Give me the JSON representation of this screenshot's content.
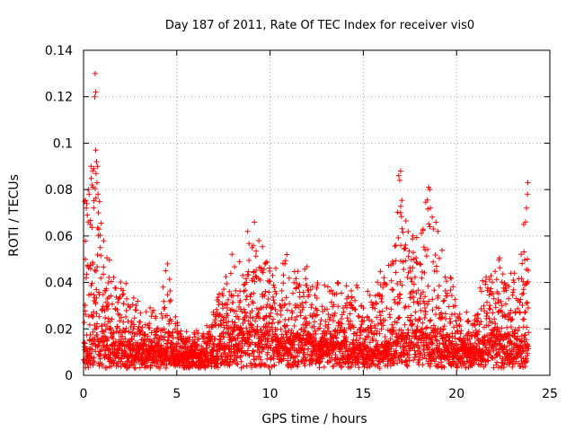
{
  "chart_data": {
    "type": "scatter",
    "title": "Day 187 of 2011, Rate Of TEC Index for receiver vis0",
    "xlabel": "GPS time / hours",
    "ylabel": "ROTI / TECUs",
    "xlim": [
      0,
      25
    ],
    "ylim": [
      0,
      0.14
    ],
    "x_ticks": [
      "0",
      "5",
      "10",
      "15",
      "20",
      "25"
    ],
    "y_ticks": [
      "0",
      "0.02",
      "0.04",
      "0.06",
      "0.08",
      "0.1",
      "0.12",
      "0.14"
    ],
    "grid": true,
    "marker": "+",
    "color": "#ff0000",
    "envelope": {
      "hours": [
        0,
        0.25,
        0.5,
        0.75,
        1,
        1.5,
        2,
        2.5,
        3,
        3.5,
        4,
        4.5,
        5,
        5.5,
        6,
        6.5,
        7,
        7.5,
        8,
        8.5,
        9,
        9.5,
        10,
        10.5,
        11,
        11.5,
        12,
        12.5,
        13,
        13.5,
        14,
        14.5,
        15,
        15.5,
        16,
        16.5,
        17,
        17.5,
        18,
        18.5,
        19,
        19.5,
        20,
        20.5,
        21,
        21.5,
        22,
        22.5,
        23,
        23.5,
        24
      ],
      "upper": [
        0.075,
        0.08,
        0.093,
        0.097,
        0.06,
        0.045,
        0.04,
        0.035,
        0.03,
        0.028,
        0.025,
        0.047,
        0.025,
        0.02,
        0.018,
        0.02,
        0.028,
        0.045,
        0.052,
        0.05,
        0.062,
        0.055,
        0.048,
        0.042,
        0.055,
        0.045,
        0.05,
        0.04,
        0.035,
        0.042,
        0.035,
        0.038,
        0.035,
        0.035,
        0.045,
        0.05,
        0.088,
        0.06,
        0.065,
        0.081,
        0.065,
        0.045,
        0.035,
        0.025,
        0.025,
        0.045,
        0.046,
        0.05,
        0.042,
        0.05,
        0.083
      ],
      "baseline": [
        0.006,
        0.01,
        0.012,
        0.012,
        0.01,
        0.01,
        0.01,
        0.009,
        0.009,
        0.009,
        0.008,
        0.01,
        0.008,
        0.007,
        0.007,
        0.007,
        0.008,
        0.012,
        0.014,
        0.014,
        0.015,
        0.012,
        0.012,
        0.011,
        0.012,
        0.012,
        0.012,
        0.011,
        0.01,
        0.01,
        0.01,
        0.01,
        0.008,
        0.009,
        0.01,
        0.009,
        0.011,
        0.013,
        0.014,
        0.013,
        0.012,
        0.011,
        0.009,
        0.009,
        0.009,
        0.012,
        0.012,
        0.012,
        0.012,
        0.011,
        0.01
      ]
    },
    "outliers": [
      [
        0.1,
        0.05
      ],
      [
        0.05,
        0.075
      ],
      [
        0.15,
        0.072
      ],
      [
        0.2,
        0.069
      ],
      [
        0.25,
        0.08
      ],
      [
        0.3,
        0.078
      ],
      [
        0.35,
        0.065
      ],
      [
        0.4,
        0.09
      ],
      [
        0.45,
        0.082
      ],
      [
        0.5,
        0.081
      ],
      [
        0.55,
        0.089
      ],
      [
        0.6,
        0.12
      ],
      [
        0.62,
        0.13
      ],
      [
        0.65,
        0.122
      ],
      [
        0.65,
        0.097
      ],
      [
        0.7,
        0.092
      ],
      [
        0.72,
        0.083
      ],
      [
        0.75,
        0.09
      ],
      [
        0.8,
        0.07
      ],
      [
        0.9,
        0.055
      ],
      [
        4.5,
        0.048
      ],
      [
        4.4,
        0.045
      ],
      [
        8.8,
        0.062
      ],
      [
        9.4,
        0.058
      ],
      [
        10.9,
        0.052
      ],
      [
        16.9,
        0.086
      ],
      [
        17.0,
        0.088
      ],
      [
        16.95,
        0.084
      ],
      [
        17.0,
        0.07
      ],
      [
        18.5,
        0.081
      ],
      [
        18.55,
        0.08
      ],
      [
        18.6,
        0.072
      ],
      [
        19.0,
        0.062
      ],
      [
        23.6,
        0.065
      ],
      [
        23.7,
        0.066
      ],
      [
        23.75,
        0.072
      ],
      [
        23.8,
        0.078
      ],
      [
        23.82,
        0.083
      ]
    ]
  }
}
